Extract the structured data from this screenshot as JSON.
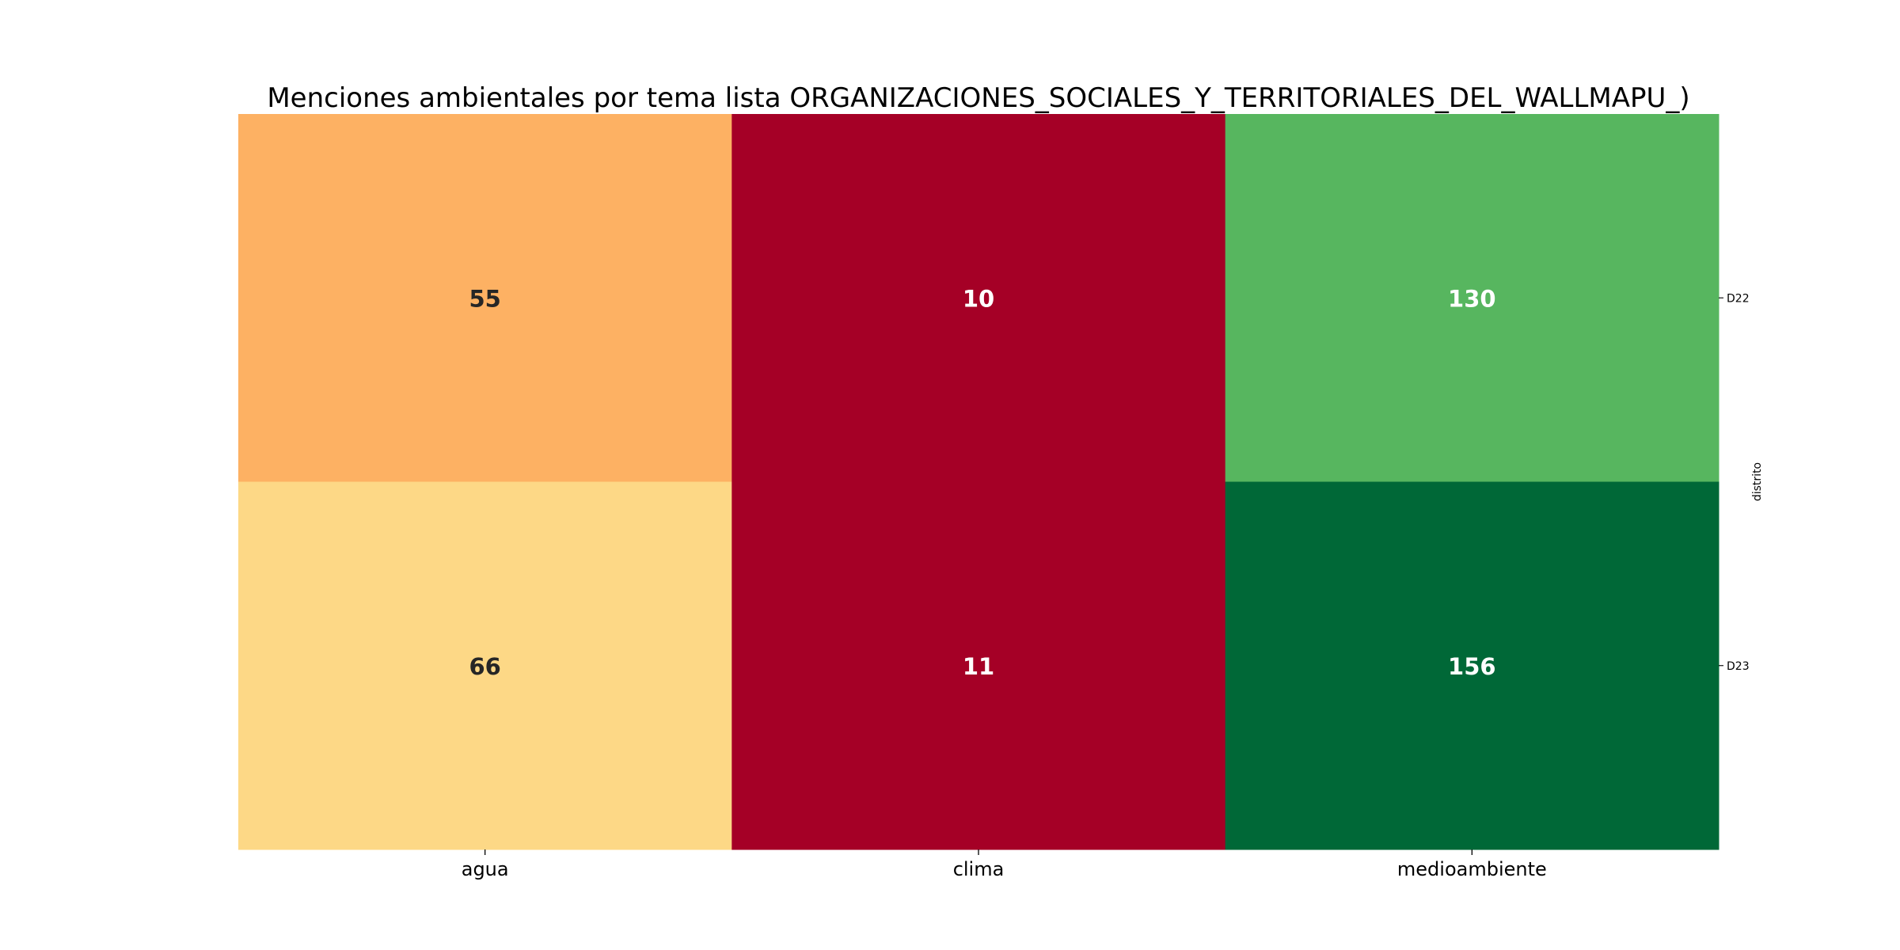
{
  "chart_data": {
    "type": "heatmap",
    "title": "Menciones ambientales por tema lista ORGANIZACIONES_SOCIALES_Y_TERRITORIALES_DEL_WALLMAPU_)",
    "xlabel": "",
    "ylabel": "distrito",
    "x_categories": [
      "agua",
      "clima",
      "medioambiente"
    ],
    "y_categories": [
      "D22",
      "D23"
    ],
    "values": [
      [
        55,
        10,
        130
      ],
      [
        66,
        11,
        156
      ]
    ],
    "colormap": "RdYlGn",
    "colorbar": false,
    "y_axis_position": "right",
    "grid": false,
    "cell_colors": [
      [
        "#fdb163",
        "#a50026",
        "#57b65f"
      ],
      [
        "#fdd886",
        "#a50026",
        "#006837"
      ]
    ],
    "label_colors": [
      [
        "#262626",
        "#ffffff",
        "#ffffff"
      ],
      [
        "#262626",
        "#ffffff",
        "#ffffff"
      ]
    ]
  }
}
